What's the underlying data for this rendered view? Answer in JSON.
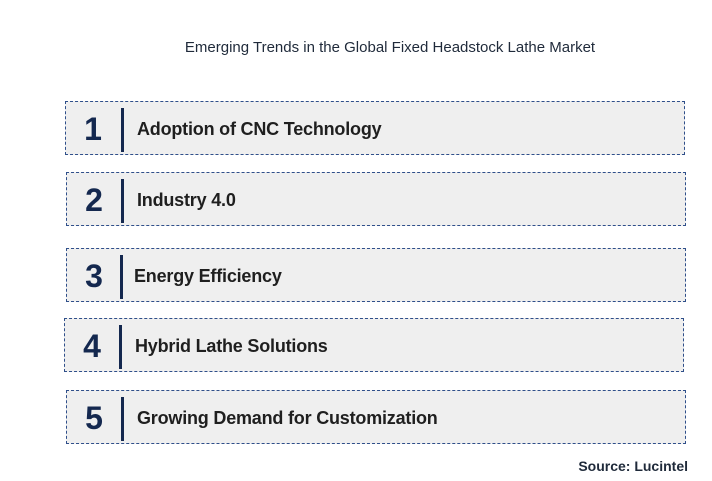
{
  "title": "Emerging Trends in the Global Fixed Headstock Lathe Market",
  "trends": [
    {
      "number": "1",
      "label": "Adoption of CNC Technology"
    },
    {
      "number": "2",
      "label": "Industry 4.0"
    },
    {
      "number": "3",
      "label": "Energy Efficiency"
    },
    {
      "number": "4",
      "label": "Hybrid Lathe Solutions"
    },
    {
      "number": "5",
      "label": "Growing Demand for Customization"
    }
  ],
  "source": "Source: Lucintel",
  "colors": {
    "accent": "#14284f",
    "box_background": "#efefef",
    "box_border": "#2f4f8a"
  }
}
